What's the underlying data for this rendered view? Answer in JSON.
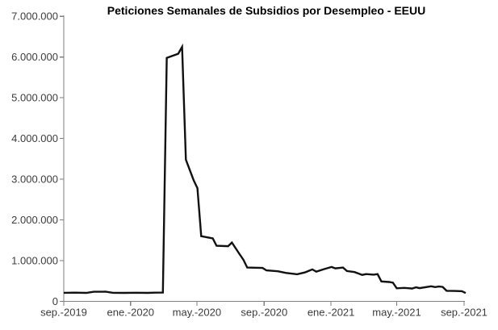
{
  "window": {
    "background": "#ffffff"
  },
  "colors": {
    "background": "#ffffff",
    "axis_line": "#7f7f7f",
    "tick_text": "#3c3c3c",
    "title_text": "#000000",
    "series_line": "#111111"
  },
  "chart_data": {
    "type": "line",
    "title": "Peticiones Semanales de Subsidios por Desempleo - EEUU",
    "grid": false,
    "legend": false,
    "x_axis": {
      "ticks": [
        {
          "label": "sep.-2019",
          "date": "2019-09-01"
        },
        {
          "label": "ene.-2020",
          "date": "2020-01-01"
        },
        {
          "label": "may.-2020",
          "date": "2020-05-01"
        },
        {
          "label": "sep.-2020",
          "date": "2020-09-01"
        },
        {
          "label": "ene.-2021",
          "date": "2021-01-01"
        },
        {
          "label": "may.-2021",
          "date": "2021-05-01"
        },
        {
          "label": "sep.-2021",
          "date": "2021-09-01"
        }
      ]
    },
    "y_axis": {
      "min": 0,
      "max": 7000000,
      "tick_interval": 1000000,
      "ticks": [
        {
          "label": "0",
          "value": 0
        },
        {
          "label": "1.000.000",
          "value": 1000000
        },
        {
          "label": "2.000.000",
          "value": 2000000
        },
        {
          "label": "3.000.000",
          "value": 3000000
        },
        {
          "label": "4.000.000",
          "value": 4000000
        },
        {
          "label": "5.000.000",
          "value": 5000000
        },
        {
          "label": "6.000.000",
          "value": 6000000
        },
        {
          "label": "7.000.000",
          "value": 7000000
        }
      ]
    },
    "series": [
      {
        "color": "#111111",
        "points": [
          [
            "2019-09-01",
            210000
          ],
          [
            "2019-09-21",
            213000
          ],
          [
            "2019-10-12",
            209000
          ],
          [
            "2019-10-26",
            235000
          ],
          [
            "2019-11-16",
            238000
          ],
          [
            "2019-11-30",
            211000
          ],
          [
            "2019-12-21",
            208000
          ],
          [
            "2020-01-11",
            212000
          ],
          [
            "2020-02-01",
            209000
          ],
          [
            "2020-02-15",
            213000
          ],
          [
            "2020-02-29",
            215000
          ],
          [
            "2020-03-07",
            5980000
          ],
          [
            "2020-03-28",
            6080000
          ],
          [
            "2020-04-04",
            6250000
          ],
          [
            "2020-04-11",
            3480000
          ],
          [
            "2020-04-25",
            2980000
          ],
          [
            "2020-05-02",
            2780000
          ],
          [
            "2020-05-09",
            1600000
          ],
          [
            "2020-05-30",
            1545000
          ],
          [
            "2020-06-06",
            1365000
          ],
          [
            "2020-06-27",
            1355000
          ],
          [
            "2020-07-04",
            1445000
          ],
          [
            "2020-07-18",
            1160000
          ],
          [
            "2020-07-25",
            1020000
          ],
          [
            "2020-08-01",
            830000
          ],
          [
            "2020-08-29",
            820000
          ],
          [
            "2020-09-05",
            760000
          ],
          [
            "2020-09-26",
            740000
          ],
          [
            "2020-10-10",
            700000
          ],
          [
            "2020-10-31",
            665000
          ],
          [
            "2020-11-14",
            710000
          ],
          [
            "2020-11-28",
            785000
          ],
          [
            "2020-12-05",
            730000
          ],
          [
            "2020-12-19",
            790000
          ],
          [
            "2021-01-02",
            845000
          ],
          [
            "2021-01-09",
            810000
          ],
          [
            "2021-01-23",
            830000
          ],
          [
            "2021-01-30",
            745000
          ],
          [
            "2021-02-13",
            720000
          ],
          [
            "2021-02-27",
            650000
          ],
          [
            "2021-03-06",
            670000
          ],
          [
            "2021-03-20",
            655000
          ],
          [
            "2021-03-27",
            670000
          ],
          [
            "2021-04-03",
            490000
          ],
          [
            "2021-04-17",
            475000
          ],
          [
            "2021-04-24",
            460000
          ],
          [
            "2021-05-01",
            320000
          ],
          [
            "2021-05-15",
            330000
          ],
          [
            "2021-05-29",
            315000
          ],
          [
            "2021-06-05",
            345000
          ],
          [
            "2021-06-12",
            325000
          ],
          [
            "2021-06-26",
            355000
          ],
          [
            "2021-07-03",
            370000
          ],
          [
            "2021-07-10",
            350000
          ],
          [
            "2021-07-17",
            365000
          ],
          [
            "2021-07-24",
            355000
          ],
          [
            "2021-07-31",
            260000
          ],
          [
            "2021-08-14",
            255000
          ],
          [
            "2021-08-28",
            250000
          ],
          [
            "2021-09-04",
            205000
          ]
        ]
      }
    ]
  }
}
